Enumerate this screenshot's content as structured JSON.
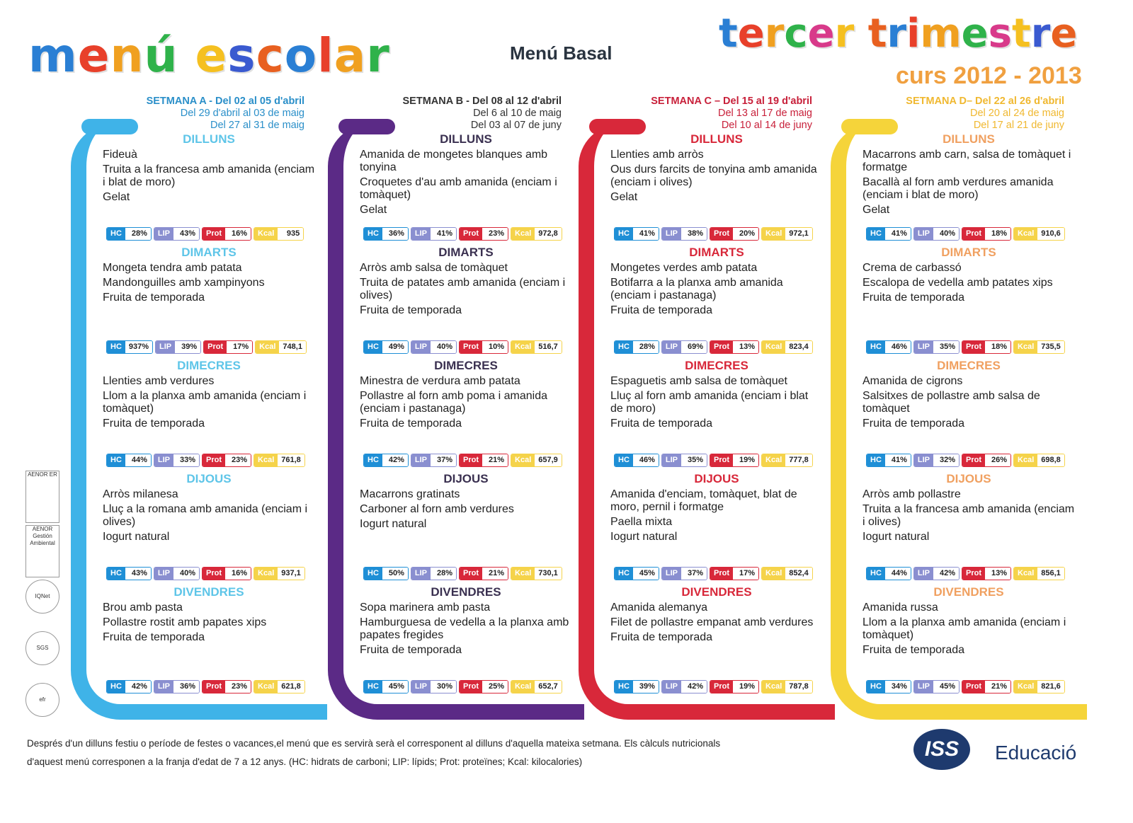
{
  "header": {
    "title_left": "menú escolar",
    "center_title": "Menú Basal",
    "title_right": "tercer trimestre",
    "subtitle": "curs 2012 - 2013"
  },
  "labels": {
    "hc": "HC",
    "lip": "LIP",
    "prot": "Prot",
    "kcal": "Kcal"
  },
  "colors": {
    "hc": "#1f8fd6",
    "lip": "#8a8fd0",
    "prot": "#d8283a",
    "kcal": "#f5d34a"
  },
  "weeks": [
    {
      "color": "#3fb3e8",
      "text_color": "#2a8fc9",
      "heading_color": "#5ec5e8",
      "lines": [
        "SETMANA A - Del 02 al 05 d'abril",
        "Del 29 d'abril al 03 de maig",
        "Del 27 al 31 de maig"
      ],
      "days": [
        {
          "name": "DILLUNS",
          "dishes": [
            "Fideuà",
            "Truita a la francesa amb amanida (enciam i blat de moro)",
            "Gelat"
          ],
          "hc": "28%",
          "lip": "43%",
          "prot": "16%",
          "kcal": "935"
        },
        {
          "name": "DIMARTS",
          "dishes": [
            "Mongeta tendra amb patata",
            "Mandonguilles amb xampinyons",
            "Fruita de temporada"
          ],
          "hc": "937%",
          "lip": "39%",
          "prot": "17%",
          "kcal": "748,1"
        },
        {
          "name": "DIMECRES",
          "dishes": [
            "Llenties amb verdures",
            "Llom a la planxa amb amanida (enciam i tomàquet)",
            "Fruita de temporada"
          ],
          "hc": "44%",
          "lip": "33%",
          "prot": "23%",
          "kcal": "761,8"
        },
        {
          "name": "DIJOUS",
          "dishes": [
            "Arròs milanesa",
            "Lluç a la romana amb amanida (enciam i olives)",
            "Iogurt natural"
          ],
          "hc": "43%",
          "lip": "40%",
          "prot": "16%",
          "kcal": "937,1"
        },
        {
          "name": "DIVENDRES",
          "dishes": [
            "Brou amb pasta",
            "Pollastre rostit amb papates xips",
            "Fruita de temporada"
          ],
          "hc": "42%",
          "lip": "36%",
          "prot": "23%",
          "kcal": "621,8"
        }
      ]
    },
    {
      "color": "#5b2a86",
      "text_color": "#333",
      "heading_color": "#3a3050",
      "lines": [
        "SETMANA B - Del 08 al 12 d'abril",
        "Del 6 al 10 de maig",
        "Del 03 al 07 de juny"
      ],
      "days": [
        {
          "name": "DILLUNS",
          "dishes": [
            "Amanida de mongetes blanques amb tonyina",
            "Croquetes d'au amb amanida (enciam i tomàquet)",
            "Gelat"
          ],
          "hc": "36%",
          "lip": "41%",
          "prot": "23%",
          "kcal": "972,8"
        },
        {
          "name": "DIMARTS",
          "dishes": [
            "Arròs amb salsa de tomàquet",
            "Truita de patates amb amanida (enciam i olives)",
            "Fruita de temporada"
          ],
          "hc": "49%",
          "lip": "40%",
          "prot": "10%",
          "kcal": "516,7"
        },
        {
          "name": "DIMECRES",
          "dishes": [
            "Minestra de verdura amb patata",
            "Pollastre al forn amb poma i amanida (enciam i pastanaga)",
            "Fruita de temporada"
          ],
          "hc": "42%",
          "lip": "37%",
          "prot": "21%",
          "kcal": "657,9"
        },
        {
          "name": "DIJOUS",
          "dishes": [
            "Macarrons gratinats",
            "Carboner al forn amb verdures",
            "Iogurt natural"
          ],
          "hc": "50%",
          "lip": "28%",
          "prot": "21%",
          "kcal": "730,1"
        },
        {
          "name": "DIVENDRES",
          "dishes": [
            "Sopa marinera amb pasta",
            "Hamburguesa de vedella a la planxa amb papates fregides",
            "Fruita de temporada"
          ],
          "hc": "45%",
          "lip": "30%",
          "prot": "25%",
          "kcal": "652,7"
        }
      ]
    },
    {
      "color": "#d8283a",
      "text_color": "#c8203a",
      "heading_color": "#d8283a",
      "lines": [
        "SETMANA C – Del 15 al 19 d'abril",
        "Del 13 al 17 de maig",
        "Del 10 al 14 de juny"
      ],
      "days": [
        {
          "name": "DILLUNS",
          "dishes": [
            "Llenties amb arròs",
            "Ous durs farcits de tonyina amb amanida (enciam i olives)",
            "Gelat"
          ],
          "hc": "41%",
          "lip": "38%",
          "prot": "20%",
          "kcal": "972,1"
        },
        {
          "name": "DIMARTS",
          "dishes": [
            "Mongetes verdes amb patata",
            "Botifarra a la planxa amb amanida (enciam i pastanaga)",
            "Fruita de temporada"
          ],
          "hc": "28%",
          "lip": "69%",
          "prot": "13%",
          "kcal": "823,4"
        },
        {
          "name": "DIMECRES",
          "dishes": [
            "Espaguetis amb salsa de tomàquet",
            "Lluç al forn amb amanida (enciam i blat de moro)",
            "Fruita de temporada"
          ],
          "hc": "46%",
          "lip": "35%",
          "prot": "19%",
          "kcal": "777,8"
        },
        {
          "name": "DIJOUS",
          "dishes": [
            "Amanida d'enciam, tomàquet, blat de moro, pernil i formatge",
            "Paella mixta",
            "Iogurt natural"
          ],
          "hc": "45%",
          "lip": "37%",
          "prot": "17%",
          "kcal": "852,4"
        },
        {
          "name": "DIVENDRES",
          "dishes": [
            "Amanida alemanya",
            "Filet de pollastre empanat amb verdures",
            "Fruita de temporada"
          ],
          "hc": "39%",
          "lip": "42%",
          "prot": "19%",
          "kcal": "787,8"
        }
      ]
    },
    {
      "color": "#f5d43a",
      "text_color": "#f0b830",
      "heading_color": "#f0a060",
      "lines": [
        "SETMANA D– Del 22 al 26 d'abril",
        "Del 20 al 24 de maig",
        "Del 17 al 21 de juny"
      ],
      "days": [
        {
          "name": "DILLUNS",
          "dishes": [
            "Macarrons amb carn, salsa de tomàquet i formatge",
            "Bacallà al forn amb verdures amanida (enciam i blat de moro)",
            "Gelat"
          ],
          "hc": "41%",
          "lip": "40%",
          "prot": "18%",
          "kcal": "910,6"
        },
        {
          "name": "DIMARTS",
          "dishes": [
            "Crema de carbassó",
            "Escalopa de vedella amb patates xips",
            "Fruita de temporada"
          ],
          "hc": "46%",
          "lip": "35%",
          "prot": "18%",
          "kcal": "735,5"
        },
        {
          "name": "DIMECRES",
          "dishes": [
            "Amanida de cigrons",
            "Salsitxes de pollastre amb salsa de tomàquet",
            "Fruita de temporada"
          ],
          "hc": "41%",
          "lip": "32%",
          "prot": "26%",
          "kcal": "698,8"
        },
        {
          "name": "DIJOUS",
          "dishes": [
            "Arròs amb pollastre",
            "Truita a la francesa amb amanida (enciam i olives)",
            "Iogurt natural"
          ],
          "hc": "44%",
          "lip": "42%",
          "prot": "13%",
          "kcal": "856,1"
        },
        {
          "name": "DIVENDRES",
          "dishes": [
            "Amanida russa",
            "Llom a la planxa amb amanida (enciam i tomàquet)",
            "Fruita de temporada"
          ],
          "hc": "34%",
          "lip": "45%",
          "prot": "21%",
          "kcal": "821,6"
        }
      ]
    }
  ],
  "footer": {
    "line1": "Després d'un dilluns festiu o període de festes o vacances,el menú que es servirà serà el corresponent al dilluns d'aquella mateixa setmana. Els càlculs nutricionals",
    "line2": "d'aquest menú corresponen a la franja d'edat de 7 a 12 anys. (HC: hidrats de carboni; LIP: lípids; Prot: proteïnes; Kcal: kilocalories)"
  },
  "brand": {
    "logo": "ISS",
    "name": "Educació"
  },
  "certifications": [
    "AENOR ER",
    "AENOR Gestión Ambiental",
    "IQNet",
    "SGS",
    "efr"
  ]
}
